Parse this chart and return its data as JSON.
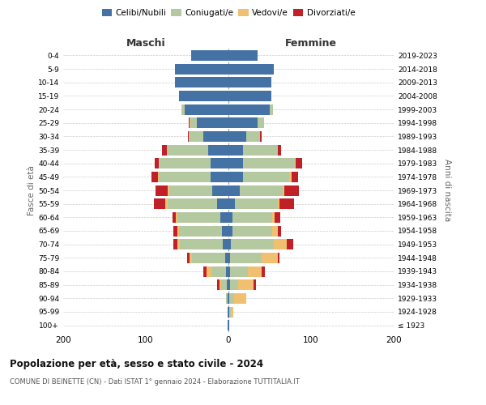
{
  "age_groups": [
    "100+",
    "95-99",
    "90-94",
    "85-89",
    "80-84",
    "75-79",
    "70-74",
    "65-69",
    "60-64",
    "55-59",
    "50-54",
    "45-49",
    "40-44",
    "35-39",
    "30-34",
    "25-29",
    "20-24",
    "15-19",
    "10-14",
    "5-9",
    "0-4"
  ],
  "birth_years": [
    "≤ 1923",
    "1924-1928",
    "1929-1933",
    "1934-1938",
    "1939-1943",
    "1944-1948",
    "1949-1953",
    "1954-1958",
    "1959-1963",
    "1964-1968",
    "1969-1973",
    "1974-1978",
    "1979-1983",
    "1984-1988",
    "1989-1993",
    "1994-1998",
    "1999-2003",
    "2004-2008",
    "2009-2013",
    "2014-2018",
    "2019-2023"
  ],
  "males_celibi": [
    1,
    1,
    1,
    2,
    3,
    4,
    7,
    8,
    10,
    14,
    20,
    22,
    22,
    25,
    30,
    38,
    53,
    60,
    65,
    65,
    45
  ],
  "males_coniugati": [
    0,
    0,
    2,
    7,
    18,
    40,
    52,
    52,
    52,
    60,
    52,
    62,
    62,
    50,
    18,
    8,
    3,
    0,
    0,
    0,
    0
  ],
  "males_vedovi": [
    0,
    0,
    0,
    2,
    5,
    3,
    3,
    2,
    2,
    2,
    2,
    1,
    0,
    0,
    0,
    1,
    1,
    0,
    0,
    0,
    0
  ],
  "males_divorziati": [
    0,
    0,
    0,
    3,
    4,
    3,
    5,
    5,
    4,
    14,
    14,
    8,
    5,
    5,
    1,
    1,
    0,
    0,
    0,
    0,
    0
  ],
  "females_nubili": [
    1,
    1,
    1,
    2,
    2,
    2,
    3,
    5,
    5,
    8,
    14,
    18,
    18,
    18,
    22,
    35,
    50,
    52,
    52,
    55,
    35
  ],
  "females_coniugate": [
    0,
    2,
    6,
    10,
    22,
    38,
    52,
    48,
    48,
    52,
    52,
    56,
    62,
    42,
    16,
    8,
    4,
    0,
    0,
    0,
    0
  ],
  "females_vedove": [
    0,
    3,
    15,
    18,
    16,
    20,
    16,
    7,
    3,
    2,
    2,
    2,
    1,
    0,
    0,
    0,
    0,
    0,
    0,
    0,
    0
  ],
  "females_divorziate": [
    0,
    0,
    0,
    3,
    4,
    2,
    7,
    4,
    7,
    17,
    17,
    8,
    8,
    4,
    2,
    0,
    0,
    0,
    0,
    0,
    0
  ],
  "colors": {
    "celibi": "#4472a4",
    "coniugati": "#b5c9a0",
    "vedovi": "#f0c070",
    "divorziati": "#c02028"
  },
  "title_main": "Popolazione per età, sesso e stato civile - 2024",
  "title_sub": "COMUNE DI BEINETTE (CN) - Dati ISTAT 1° gennaio 2024 - Elaborazione TUTTITALIA.IT",
  "label_maschi": "Maschi",
  "label_femmine": "Femmine",
  "ylabel_left": "Fasce di età",
  "ylabel_right": "Anni di nascita",
  "xlim": 200,
  "background_color": "#ffffff",
  "grid_color": "#cccccc",
  "legend_labels": [
    "Celibi/Nubili",
    "Coniugati/e",
    "Vedovi/e",
    "Divorziati/e"
  ]
}
